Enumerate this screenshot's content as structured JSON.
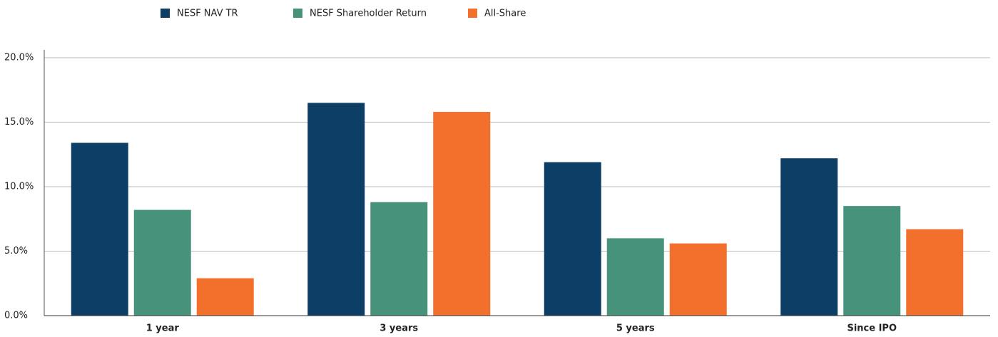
{
  "chart_data": {
    "type": "bar",
    "categories": [
      "1 year",
      "3 years",
      "5 years",
      "Since IPO"
    ],
    "series": [
      {
        "name": "NESF NAV TR",
        "color": "#0d3f66",
        "values": [
          13.4,
          16.5,
          11.9,
          12.2
        ]
      },
      {
        "name": "NESF Shareholder Return",
        "color": "#47927a",
        "values": [
          8.2,
          8.8,
          6.0,
          8.5
        ]
      },
      {
        "name": "All-Share",
        "color": "#f26f2c",
        "values": [
          2.9,
          15.8,
          5.6,
          6.7
        ]
      }
    ],
    "ylim": [
      0,
      20
    ],
    "yticks": [
      {
        "value": 0,
        "label": "0.0%"
      },
      {
        "value": 5,
        "label": "5.0%"
      },
      {
        "value": 10,
        "label": "10.0%"
      },
      {
        "value": 15,
        "label": "15.0%"
      },
      {
        "value": 20,
        "label": "20.0%"
      }
    ],
    "grid": true,
    "legend": "top"
  }
}
